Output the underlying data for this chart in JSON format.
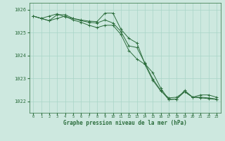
{
  "title": "Graphe pression niveau de la mer (hPa)",
  "bg_color": "#cde8df",
  "grid_color": "#a8d5c8",
  "line_color": "#2d6e3e",
  "xlim": [
    -0.5,
    23.5
  ],
  "ylim": [
    1021.5,
    1026.3
  ],
  "yticks": [
    1022,
    1023,
    1024,
    1025,
    1026
  ],
  "xticks": [
    0,
    1,
    2,
    3,
    4,
    5,
    6,
    7,
    8,
    9,
    10,
    11,
    12,
    13,
    14,
    15,
    16,
    17,
    18,
    19,
    20,
    21,
    22,
    23
  ],
  "series": [
    {
      "x": [
        0,
        1,
        2,
        3,
        4,
        5,
        6,
        7,
        8,
        9,
        10,
        11,
        12,
        13,
        14,
        15,
        16,
        17,
        18,
        19,
        20,
        21,
        22,
        23
      ],
      "y": [
        1025.72,
        1025.62,
        1025.72,
        1025.82,
        1025.68,
        1025.62,
        1025.55,
        1025.5,
        1025.48,
        1025.85,
        1025.85,
        1025.15,
        1024.75,
        1024.55,
        1023.65,
        1023.25,
        1022.58,
        1022.08,
        1022.1,
        1022.48,
        1022.18,
        1022.18,
        1022.15,
        1022.1
      ]
    },
    {
      "x": [
        0,
        1,
        2,
        3,
        4,
        5,
        6,
        7,
        8,
        9,
        10,
        11,
        12,
        13,
        14,
        15,
        16,
        17,
        18,
        19,
        20,
        21,
        22,
        23
      ],
      "y": [
        1025.72,
        1025.62,
        1025.52,
        1025.78,
        1025.78,
        1025.62,
        1025.52,
        1025.45,
        1025.42,
        1025.55,
        1025.42,
        1025.05,
        1024.42,
        1024.35,
        1023.68,
        1022.98,
        1022.48,
        1022.08,
        1022.1,
        1022.42,
        1022.18,
        1022.28,
        1022.28,
        1022.18
      ]
    },
    {
      "x": [
        0,
        1,
        2,
        3,
        4,
        5,
        6,
        7,
        8,
        9,
        10,
        11,
        12,
        13,
        14,
        15,
        16,
        17,
        18,
        19,
        20,
        21,
        22,
        23
      ],
      "y": [
        1025.72,
        1025.62,
        1025.52,
        1025.62,
        1025.72,
        1025.55,
        1025.45,
        1025.32,
        1025.22,
        1025.32,
        1025.32,
        1024.92,
        1024.22,
        1023.85,
        1023.62,
        1022.92,
        1022.45,
        1022.15,
        1022.18,
        1022.42,
        1022.18,
        1022.15,
        1022.12,
        1022.08
      ]
    }
  ]
}
